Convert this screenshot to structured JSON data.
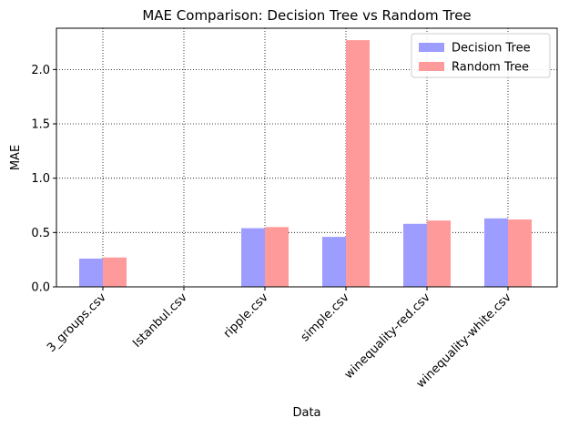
{
  "chart_data": {
    "type": "bar",
    "title": "MAE Comparison: Decision Tree vs Random Tree",
    "xlabel": "Data",
    "ylabel": "MAE",
    "categories": [
      "3_groups.csv",
      "Istanbul.csv",
      "ripple.csv",
      "simple.csv",
      "winequality-red.csv",
      "winequality-white.csv"
    ],
    "series": [
      {
        "name": "Decision Tree",
        "values": [
          0.26,
          0.0,
          0.54,
          0.46,
          0.58,
          0.63
        ],
        "color": "#9d9dff"
      },
      {
        "name": "Random Tree",
        "values": [
          0.27,
          0.0,
          0.55,
          2.27,
          0.61,
          0.62
        ],
        "color": "#ff9a9a"
      }
    ],
    "ylim": [
      0,
      2.38
    ],
    "yticks": [
      0.0,
      0.5,
      1.0,
      1.5,
      2.0
    ],
    "ytick_labels": [
      "0.0",
      "0.5",
      "1.0",
      "1.5",
      "2.0"
    ],
    "grid": true,
    "grid_style": "dotted",
    "legend_position": "top-right",
    "xtick_rotation": "45deg"
  }
}
